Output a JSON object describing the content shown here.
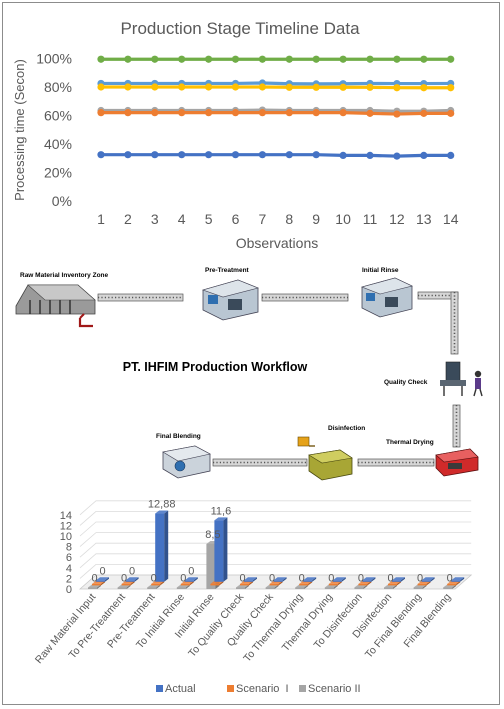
{
  "line_chart": {
    "title": "Production Stage Timeline Data",
    "ylabel": "Processing time (Secon)",
    "xlabel": "Observations",
    "y_ticks": [
      "0%",
      "20%",
      "40%",
      "60%",
      "80%",
      "100%"
    ],
    "x_ticks": [
      "1",
      "2",
      "3",
      "4",
      "5",
      "6",
      "7",
      "8",
      "9",
      "10",
      "11",
      "12",
      "13",
      "14"
    ]
  },
  "workflow": {
    "title": "PT. IHFIM Production Workflow",
    "stations": [
      {
        "label": "Raw Material Inventory Zone"
      },
      {
        "label": "Pre-Treatment"
      },
      {
        "label": "Initial Rinse"
      },
      {
        "label": "Quality Check"
      },
      {
        "label": "Thermal Drying"
      },
      {
        "label": "Disinfection"
      },
      {
        "label": "Final Blending"
      }
    ]
  },
  "bar_chart": {
    "y_ticks": [
      "0",
      "2",
      "4",
      "6",
      "8",
      "10",
      "12",
      "14"
    ],
    "legend": [
      "Actual",
      "Scenario  I",
      "Scenario II"
    ]
  },
  "chart_data": [
    {
      "type": "line",
      "title": "Production Stage Timeline Data",
      "xlabel": "Observations",
      "ylabel": "Processing time (Secon)",
      "ylim": [
        0,
        100
      ],
      "grid": false,
      "x": [
        1,
        2,
        3,
        4,
        5,
        6,
        7,
        8,
        9,
        10,
        11,
        12,
        13,
        14
      ],
      "series": [
        {
          "color": "#70ad47",
          "values": [
            99.5,
            99.5,
            99.5,
            99.5,
            99.5,
            99.5,
            99.5,
            99.5,
            99.5,
            99.5,
            99.5,
            99.5,
            99.5,
            99.5
          ]
        },
        {
          "color": "#5b9bd5",
          "values": [
            82.5,
            82.5,
            82.5,
            82.5,
            82.5,
            82.5,
            82.8,
            82.3,
            82.2,
            82.3,
            82.5,
            82.4,
            82.4,
            82.5
          ]
        },
        {
          "color": "#ffc000",
          "values": [
            80,
            80,
            80,
            80,
            80,
            80,
            80,
            79.8,
            79.8,
            79.8,
            79.8,
            79.5,
            79.5,
            79.5
          ]
        },
        {
          "color": "#a5a5a5",
          "values": [
            63.5,
            63.5,
            63.5,
            63.5,
            63.5,
            63.5,
            63.8,
            63.5,
            63.5,
            63.5,
            63.5,
            63,
            63,
            63.5
          ]
        },
        {
          "color": "#ed7d31",
          "values": [
            62,
            62,
            62,
            62,
            62,
            62,
            62,
            62,
            62,
            62,
            61.5,
            61,
            61.5,
            61.5
          ]
        },
        {
          "color": "#4472c4",
          "values": [
            32.5,
            32.5,
            32.5,
            32.5,
            32.5,
            32.5,
            32.5,
            32.5,
            32.5,
            32,
            32,
            31.5,
            32,
            32
          ]
        }
      ]
    },
    {
      "type": "bar",
      "ylim": [
        0,
        14
      ],
      "legend_position": "bottom",
      "categories": [
        "Raw Material Input",
        "To Pre-Treatment",
        "Pre-Treatment",
        "To Initial Rinse",
        "Initial Rinse",
        "To Quality Check",
        "Quality Check",
        "To Thermal Drying",
        "Thermal Drying",
        "To Disinfection",
        "Disinfection",
        "To Final Blending",
        "Final Blending"
      ],
      "series": [
        {
          "name": "Actual",
          "color": "#4472c4",
          "values": [
            0,
            0,
            12.88,
            0,
            11.6,
            0,
            0,
            0,
            0,
            0,
            0,
            0,
            0
          ],
          "labels": [
            "0",
            "0",
            "12,88",
            "0",
            "11,6",
            "",
            "",
            "",
            "",
            "",
            "",
            "",
            ""
          ]
        },
        {
          "name": "Scenario  I",
          "color": "#ed7d31",
          "values": [
            0,
            0,
            0,
            0,
            0,
            0,
            0,
            0,
            0,
            0,
            0,
            0,
            0
          ],
          "labels": [
            "",
            "",
            "",
            "",
            "",
            "",
            "",
            "",
            "",
            "",
            "",
            "",
            ""
          ]
        },
        {
          "name": "Scenario II",
          "color": "#a5a5a5",
          "values": [
            0,
            0,
            0,
            0,
            8.5,
            0,
            0,
            0,
            0,
            0,
            0,
            0,
            0
          ],
          "labels": [
            "0",
            "0",
            "0",
            "0",
            "8,5",
            "0",
            "0",
            "0",
            "0",
            "0",
            "0",
            "0",
            "0"
          ]
        }
      ]
    }
  ]
}
